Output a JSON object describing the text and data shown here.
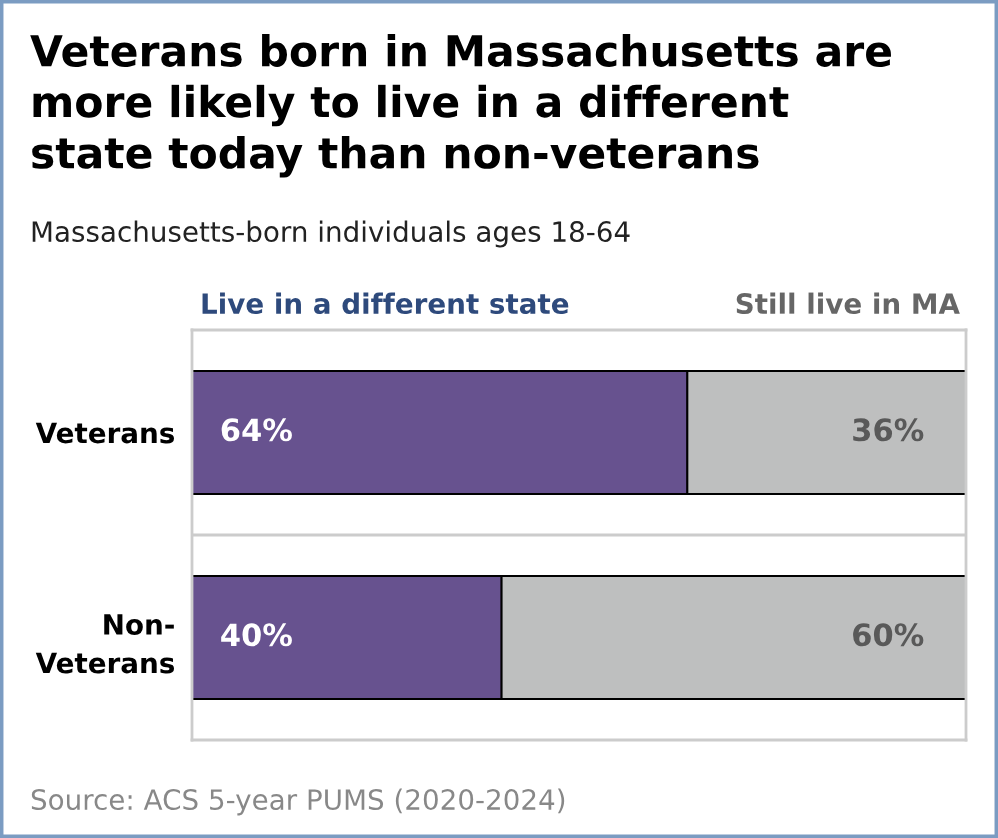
{
  "chart_data": {
    "type": "bar",
    "orientation": "horizontal",
    "stacked": true,
    "title": "Veterans born in Massachusetts are\nmore likely to live in a different\nstate today than non-veterans",
    "subtitle": "Massachusetts-born individuals ages 18-64",
    "categories": [
      "Veterans",
      "Non-\nVeterans"
    ],
    "series": [
      {
        "name": "Live in a different state",
        "color": "#67528f",
        "values": [
          64,
          40
        ],
        "value_labels": [
          "64%",
          "40%"
        ]
      },
      {
        "name": "Still live in MA",
        "color": "#bebfbf",
        "values": [
          36,
          60
        ],
        "value_labels": [
          "36%",
          "60%"
        ]
      }
    ],
    "xlim": [
      0,
      100
    ],
    "tick_labels": "y",
    "legend": "top",
    "annotations": [
      "Source: ACS 5-year PUMS (2020-2024)"
    ]
  }
}
